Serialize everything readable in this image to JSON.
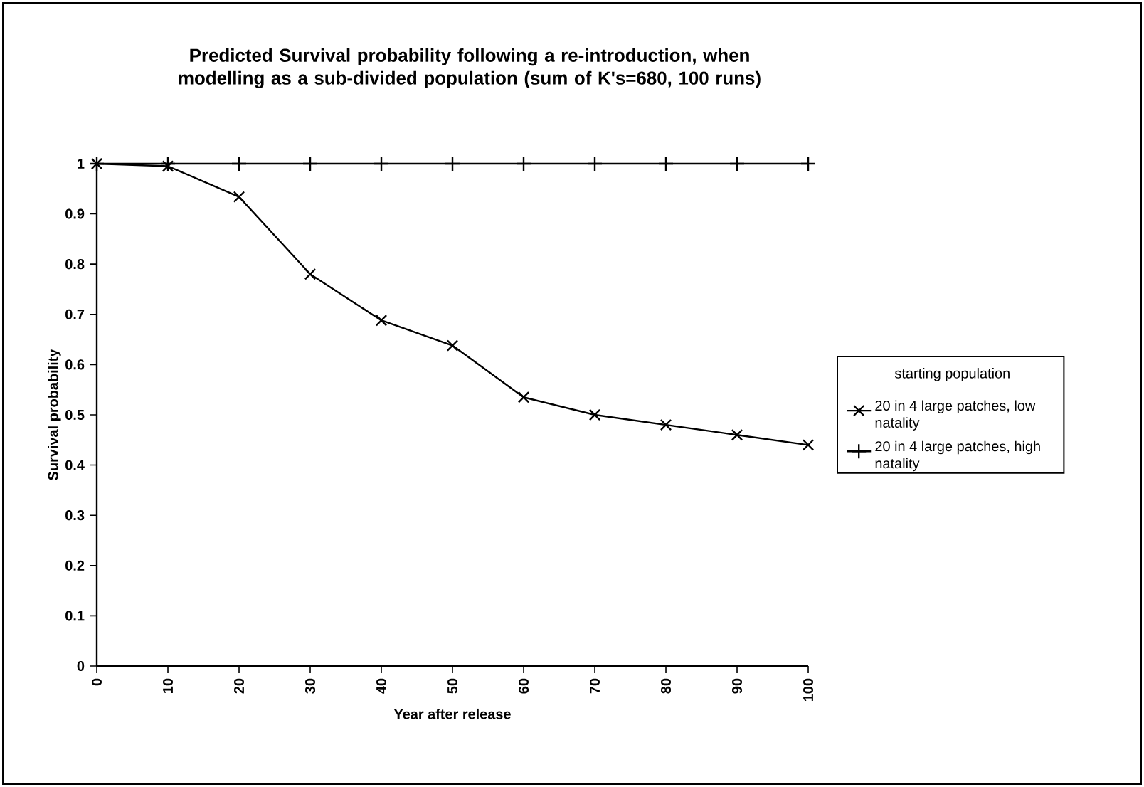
{
  "chart_data": {
    "type": "line",
    "title": "Predicted Survival probability following a re-introduction, when modelling as a sub-divided population (sum of K's=680, 100 runs)",
    "xlabel": "Year after release",
    "ylabel": "Survival probability",
    "legend_title": "starting population",
    "legend": "right",
    "x": [
      0,
      10,
      20,
      30,
      40,
      50,
      60,
      70,
      80,
      90,
      100
    ],
    "series": [
      {
        "name": "20 in 4 large patches, low natality",
        "color": "#000000",
        "marker": "cross",
        "values": [
          1,
          0.995,
          0.934,
          0.78,
          0.688,
          0.638,
          0.535,
          0.5,
          0.48,
          0.46,
          0.44
        ]
      },
      {
        "name": "20 in 4 large patches, high natality",
        "color": "#000000",
        "marker": "plus",
        "values": [
          1,
          1,
          1,
          1,
          1,
          1,
          1,
          1,
          1,
          1,
          1
        ]
      }
    ],
    "xlim": [
      0,
      100
    ],
    "ylim": [
      0,
      1
    ],
    "xticks": [
      0,
      10,
      20,
      30,
      40,
      50,
      60,
      70,
      80,
      90,
      100
    ],
    "yticks": [
      0,
      0.1,
      0.2,
      0.3,
      0.4,
      0.5,
      0.6,
      0.7,
      0.8,
      0.9,
      1
    ],
    "grid": false
  }
}
